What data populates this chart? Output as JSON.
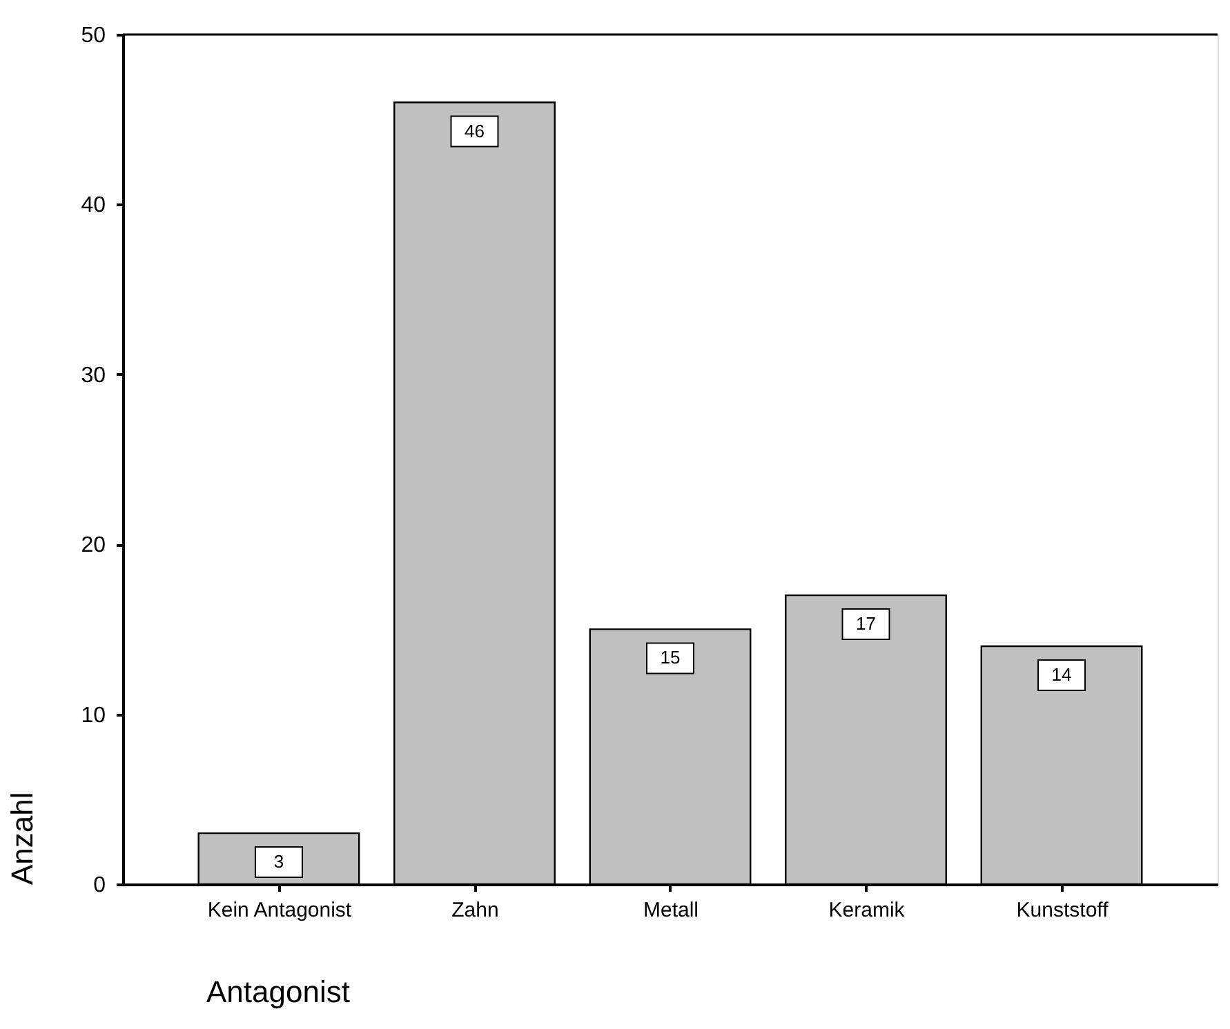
{
  "chart_data": {
    "type": "bar",
    "categories": [
      "Kein Antagonist",
      "Zahn",
      "Metall",
      "Keramik",
      "Kunststoff"
    ],
    "values": [
      3,
      46,
      15,
      17,
      14
    ],
    "color": "#c0c0c0",
    "ylim": [
      0,
      50
    ],
    "yticks": [
      0,
      10,
      20,
      30,
      40,
      50
    ],
    "xlabel": "Antagonist",
    "ylabel": "Anzahl",
    "data_labels": true,
    "grid": false
  }
}
